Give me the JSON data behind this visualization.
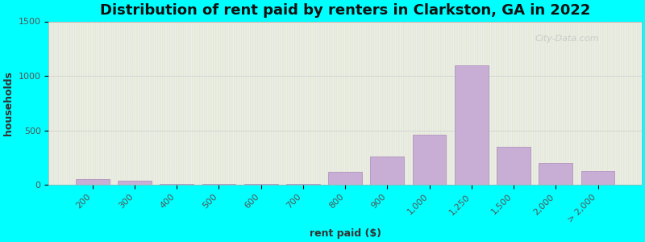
{
  "title": "Distribution of rent paid by renters in Clarkston, GA in 2022",
  "xlabel": "rent paid ($)",
  "ylabel": "households",
  "categories": [
    "200",
    "300",
    "400",
    "500",
    "600",
    "700",
    "800",
    "900",
    "1,000",
    "1,250",
    "1,500",
    "2,000",
    "> 2,000"
  ],
  "values": [
    55,
    40,
    5,
    5,
    5,
    5,
    120,
    260,
    460,
    1100,
    350,
    200,
    125
  ],
  "bar_color": "#c8aed4",
  "bar_edge_color": "#aa88bb",
  "bg_outer": "#00ffff",
  "grad_top": "#dce8c8",
  "grad_bot": "#f4eff8",
  "title_fontsize": 13,
  "axis_fontsize": 9,
  "tick_fontsize": 8,
  "ylim": [
    0,
    1500
  ],
  "yticks": [
    0,
    500,
    1000,
    1500
  ],
  "watermark": "City-Data.com"
}
